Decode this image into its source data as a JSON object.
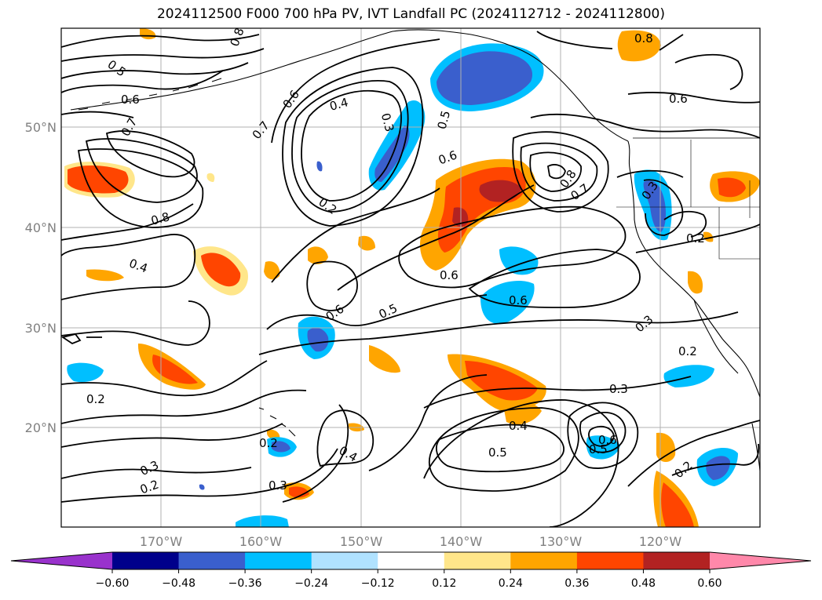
{
  "title": "2024112500 F000 700 hPa PV, IVT Landfall PC (2024112712 - 2024112800)",
  "map": {
    "lat_labels": [
      "50°N",
      "40°N",
      "30°N",
      "20°N"
    ],
    "lon_labels": [
      "170°W",
      "160°W",
      "150°W",
      "140°W",
      "130°W",
      "120°W"
    ],
    "grid": true,
    "contour_labels": [
      "0.5",
      "0.6",
      "0.7",
      "0.8",
      "0.4",
      "0.6",
      "0.3",
      "0.5",
      "0.6",
      "0.8",
      "0.7",
      "0.8",
      "0.6",
      "0.7",
      "0.2",
      "0.6",
      "0.3",
      "0.2",
      "0.8",
      "0.4",
      "0.6",
      "0.6",
      "0.5",
      "0.3",
      "0.2",
      "0.2",
      "0.3",
      "0.2",
      "0.3",
      "0.2",
      "0.4",
      "0.5",
      "0.5",
      "0.6",
      "0.4",
      "0.2",
      "0.3"
    ]
  },
  "colorbar": {
    "ticks": [
      "−0.60",
      "−0.48",
      "−0.36",
      "−0.24",
      "−0.12",
      "0.12",
      "0.24",
      "0.36",
      "0.48",
      "0.60"
    ],
    "colors": [
      "#9932cc",
      "#00008b",
      "#3a5fcd",
      "#00bfff",
      "#b0e2ff",
      "#ffffff",
      "#ffe68a",
      "#ffa500",
      "#ff4500",
      "#b22222",
      "#ff88aa"
    ]
  }
}
